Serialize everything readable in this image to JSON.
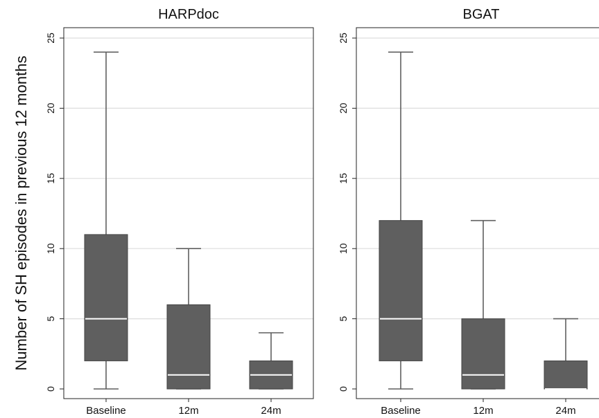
{
  "figure": {
    "ylabel": "Number of SH episodes in previous 12 months"
  },
  "chart_data": [
    {
      "type": "box",
      "title": "HARPdoc",
      "categories": [
        "Baseline",
        "12m",
        "24m"
      ],
      "ylim": [
        0,
        25
      ],
      "yticks": [
        "0",
        "5",
        "10",
        "15",
        "20",
        "25"
      ],
      "grid": true,
      "boxes": [
        {
          "min": 0,
          "q1": 2,
          "median": 5,
          "q3": 11,
          "max": 24
        },
        {
          "min": 0,
          "q1": 0,
          "median": 1,
          "q3": 6,
          "max": 10
        },
        {
          "min": 0,
          "q1": 0,
          "median": 1,
          "q3": 2,
          "max": 4
        }
      ],
      "colors": {
        "box": "#5f5f5f",
        "median": "#ffffff",
        "whisker": "#5f5f5f",
        "grid": "#dddddd"
      }
    },
    {
      "type": "box",
      "title": "BGAT",
      "categories": [
        "Baseline",
        "12m",
        "24m"
      ],
      "ylim": [
        0,
        25
      ],
      "yticks": [
        "0",
        "5",
        "10",
        "15",
        "20",
        "25"
      ],
      "grid": true,
      "boxes": [
        {
          "min": 0,
          "q1": 2,
          "median": 5,
          "q3": 12,
          "max": 24
        },
        {
          "min": 0,
          "q1": 0,
          "median": 1,
          "q3": 5,
          "max": 12
        },
        {
          "min": 0,
          "q1": 0,
          "median": 0,
          "q3": 2,
          "max": 5
        }
      ],
      "colors": {
        "box": "#5f5f5f",
        "median": "#ffffff",
        "whisker": "#5f5f5f",
        "grid": "#dddddd"
      }
    }
  ]
}
